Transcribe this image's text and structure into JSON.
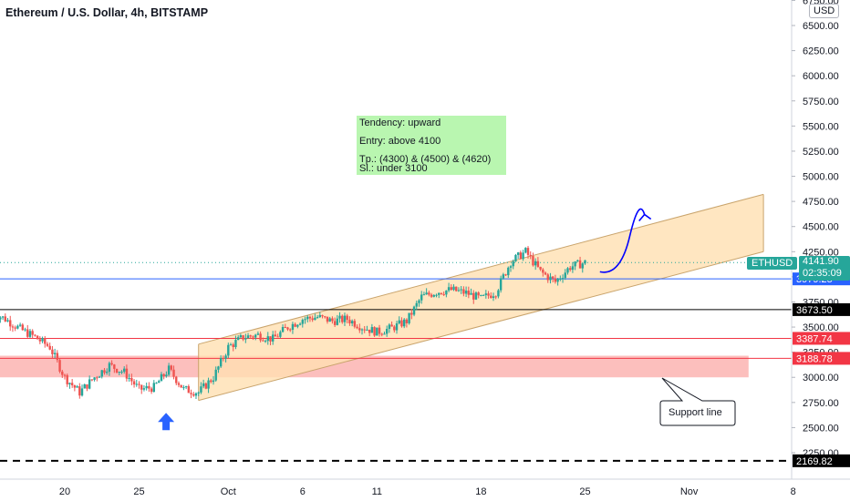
{
  "header": {
    "title": "Ethereum / U.S. Dollar, 4h, BITSTAMP",
    "currency": "USD"
  },
  "chart_data": {
    "type": "candlestick",
    "symbol": "ETHUSD",
    "y_ticks": [
      2250,
      2500,
      2750,
      3000,
      3250,
      3500,
      3750,
      4000,
      4250,
      4500,
      4750,
      5000,
      5250,
      5500,
      5750,
      6000,
      6250,
      6500,
      6750
    ],
    "x_ticks": [
      {
        "label": "20",
        "date": "2021-09-20"
      },
      {
        "label": "25",
        "date": "2021-09-25"
      },
      {
        "label": "Oct",
        "date": "2021-10-01"
      },
      {
        "label": "6",
        "date": "2021-10-06"
      },
      {
        "label": "11",
        "date": "2021-10-11"
      },
      {
        "label": "18",
        "date": "2021-10-18"
      },
      {
        "label": "25",
        "date": "2021-10-25"
      },
      {
        "label": "Nov",
        "date": "2021-11-01"
      },
      {
        "label": "8",
        "date": "2021-11-08"
      }
    ],
    "price_path": [
      [
        "2021-09-15",
        3650
      ],
      [
        "2021-09-16",
        3580
      ],
      [
        "2021-09-17",
        3480
      ],
      [
        "2021-09-18",
        3400
      ],
      [
        "2021-09-19",
        3300
      ],
      [
        "2021-09-20",
        3000
      ],
      [
        "2021-09-21",
        2850
      ],
      [
        "2021-09-22",
        3000
      ],
      [
        "2021-09-23",
        3120
      ],
      [
        "2021-09-24",
        3050
      ],
      [
        "2021-09-25",
        2880
      ],
      [
        "2021-09-26",
        2900
      ],
      [
        "2021-09-27",
        3080
      ],
      [
        "2021-09-28",
        2880
      ],
      [
        "2021-09-29",
        2850
      ],
      [
        "2021-09-30",
        3000
      ],
      [
        "2021-10-01",
        3300
      ],
      [
        "2021-10-02",
        3400
      ],
      [
        "2021-10-03",
        3420
      ],
      [
        "2021-10-04",
        3380
      ],
      [
        "2021-10-05",
        3500
      ],
      [
        "2021-10-06",
        3580
      ],
      [
        "2021-10-07",
        3600
      ],
      [
        "2021-10-08",
        3560
      ],
      [
        "2021-10-09",
        3580
      ],
      [
        "2021-10-10",
        3500
      ],
      [
        "2021-10-11",
        3450
      ],
      [
        "2021-10-12",
        3490
      ],
      [
        "2021-10-13",
        3560
      ],
      [
        "2021-10-14",
        3800
      ],
      [
        "2021-10-15",
        3850
      ],
      [
        "2021-10-16",
        3870
      ],
      [
        "2021-10-17",
        3840
      ],
      [
        "2021-10-18",
        3780
      ],
      [
        "2021-10-19",
        3850
      ],
      [
        "2021-10-20",
        4150
      ],
      [
        "2021-10-21",
        4250
      ],
      [
        "2021-10-22",
        4050
      ],
      [
        "2021-10-23",
        3950
      ],
      [
        "2021-10-24",
        4100
      ],
      [
        "2021-10-25",
        4141.9
      ]
    ],
    "channel": {
      "upper": [
        [
          "2021-09-29",
          3330
        ],
        [
          "2021-11-06",
          4820
        ]
      ],
      "lower": [
        [
          "2021-09-29",
          2770
        ],
        [
          "2021-11-06",
          4250
        ]
      ]
    },
    "support_zone": {
      "from": 3000,
      "to": 3215,
      "end_date": "2021-11-05"
    },
    "horizontal_lines": [
      {
        "value": 3979.25,
        "color": "#2962ff",
        "style": "solid"
      },
      {
        "value": 3673.5,
        "color": "#000000",
        "style": "solid"
      },
      {
        "value": 3387.74,
        "color": "#f23645",
        "style": "solid"
      },
      {
        "value": 3188.78,
        "color": "#f23645",
        "style": "solid"
      },
      {
        "value": 2169.82,
        "color": "#000000",
        "style": "dashed"
      }
    ],
    "projection_arrow": [
      [
        "2021-10-26",
        4050
      ],
      [
        "2021-10-27",
        4130
      ],
      [
        "2021-10-28",
        4400
      ],
      [
        "2021-10-29",
        4620
      ]
    ],
    "buy_arrow": {
      "date": "2021-09-27",
      "value": 2520
    },
    "price_labels": [
      {
        "text": "3979.25",
        "value": 3979.25,
        "bg": "#2962ff",
        "fg": "#ffffff"
      },
      {
        "text": "3673.50",
        "value": 3673.5,
        "bg": "#000000",
        "fg": "#ffffff"
      },
      {
        "text": "3387.74",
        "value": 3387.74,
        "bg": "#f23645",
        "fg": "#ffffff"
      },
      {
        "text": "3188.78",
        "value": 3188.78,
        "bg": "#f23645",
        "fg": "#ffffff"
      },
      {
        "text": "2169.82",
        "value": 2169.82,
        "bg": "#000000",
        "fg": "#ffffff"
      }
    ],
    "last_price": {
      "symbol": "ETHUSD",
      "price": "4141.90",
      "countdown": "02:35:09"
    },
    "annotation": {
      "tendency": "Tendency: upward",
      "entry": "Entry: above 4100",
      "tp": "Tp.: (4300) & (4500) & (4620)",
      "sl": "Sl.: under 3100"
    },
    "callout": "Support line"
  },
  "colors": {
    "up": "#26a69a",
    "down": "#ef5350",
    "channel_fill": "#ffe0b2",
    "channel_line": "#c9a46c",
    "zone": "#fbb4b2",
    "arrow": "#0000ff"
  }
}
